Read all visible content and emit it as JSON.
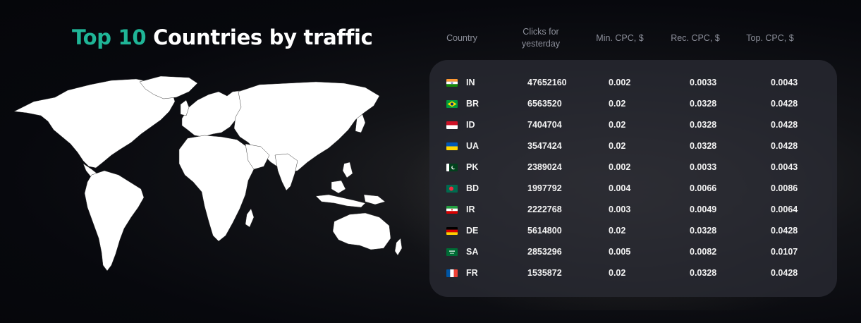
{
  "title": {
    "accent": "Top 10",
    "rest": "Countries by traffic"
  },
  "table": {
    "headers": {
      "country": "Country",
      "clicks_line1": "Clicks for",
      "clicks_line2": "yesterday",
      "min_cpc": "Min. CPC, $",
      "rec_cpc": "Rec. CPC, $",
      "top_cpc": "Top. CPC, $"
    },
    "rows": [
      {
        "code": "IN",
        "clicks": "47652160",
        "min": "0.002",
        "rec": "0.0033",
        "top": "0.0043",
        "flag": "india-flag-icon"
      },
      {
        "code": "BR",
        "clicks": "6563520",
        "min": "0.02",
        "rec": "0.0328",
        "top": "0.0428",
        "flag": "brazil-flag-icon"
      },
      {
        "code": "ID",
        "clicks": "7404704",
        "min": "0.02",
        "rec": "0.0328",
        "top": "0.0428",
        "flag": "indonesia-flag-icon"
      },
      {
        "code": "UA",
        "clicks": "3547424",
        "min": "0.02",
        "rec": "0.0328",
        "top": "0.0428",
        "flag": "ukraine-flag-icon"
      },
      {
        "code": "PK",
        "clicks": "2389024",
        "min": "0.002",
        "rec": "0.0033",
        "top": "0.0043",
        "flag": "pakistan-flag-icon"
      },
      {
        "code": "BD",
        "clicks": "1997792",
        "min": "0.004",
        "rec": "0.0066",
        "top": "0.0086",
        "flag": "bangladesh-flag-icon"
      },
      {
        "code": "IR",
        "clicks": "2222768",
        "min": "0.003",
        "rec": "0.0049",
        "top": "0.0064",
        "flag": "iran-flag-icon"
      },
      {
        "code": "DE",
        "clicks": "5614800",
        "min": "0.02",
        "rec": "0.0328",
        "top": "0.0428",
        "flag": "germany-flag-icon"
      },
      {
        "code": "SA",
        "clicks": "2853296",
        "min": "0.005",
        "rec": "0.0082",
        "top": "0.0107",
        "flag": "saudi-arabia-flag-icon"
      },
      {
        "code": "FR",
        "clicks": "1535872",
        "min": "0.02",
        "rec": "0.0328",
        "top": "0.0428",
        "flag": "france-flag-icon"
      }
    ]
  },
  "colors": {
    "accent": "#1fb597",
    "panel": "#282a32",
    "header_text": "#8c8f9a"
  }
}
